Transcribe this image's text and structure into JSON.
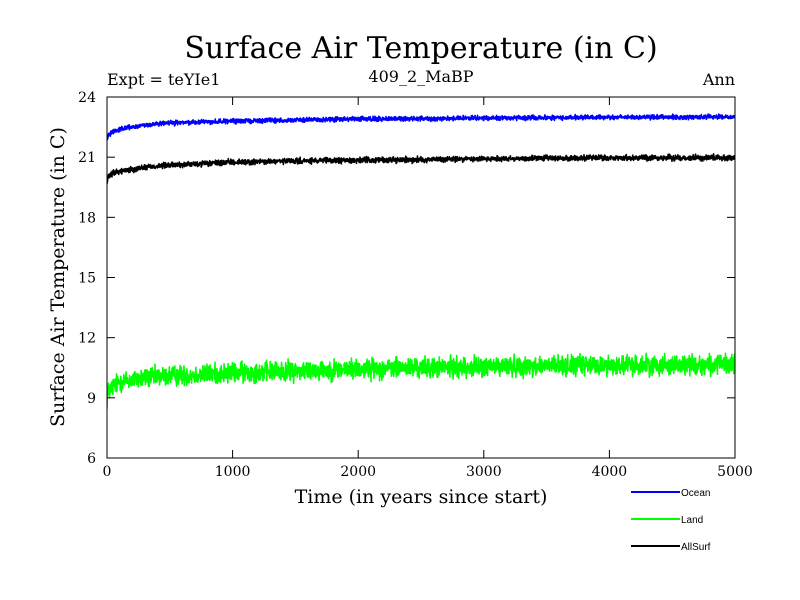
{
  "chart_data": {
    "type": "line",
    "title": "Surface Air Temperature (in C)",
    "subtitle_left": "Expt = teYIe1",
    "subtitle_center": "409_2_MaBP",
    "subtitle_right": "Ann",
    "xlabel": "Time (in years since start)",
    "ylabel": "Surface Air Temperature (in C)",
    "xlim": [
      0,
      5000
    ],
    "ylim": [
      6,
      24
    ],
    "xticks": [
      0,
      1000,
      2000,
      3000,
      4000,
      5000
    ],
    "xtick_labels": [
      "0",
      "1000",
      "2000",
      "3000",
      "4000",
      "5000"
    ],
    "yticks": [
      6,
      9,
      12,
      15,
      18,
      21,
      24
    ],
    "ytick_labels": [
      "6",
      "9",
      "12",
      "15",
      "18",
      "21",
      "24"
    ],
    "legend_position": "bottom-right, outside plot",
    "series": [
      {
        "name": "Ocean",
        "color": "#0000ff",
        "noise_amplitude": 0.08,
        "x": [
          0,
          10,
          50,
          100,
          200,
          300,
          500,
          700,
          1000,
          1500,
          2000,
          2500,
          3000,
          3500,
          4000,
          4500,
          5000
        ],
        "values": [
          21.9,
          22.1,
          22.3,
          22.4,
          22.5,
          22.6,
          22.7,
          22.75,
          22.8,
          22.85,
          22.9,
          22.92,
          22.95,
          22.97,
          22.98,
          23.0,
          23.0
        ]
      },
      {
        "name": "Land",
        "color": "#00ff00",
        "noise_amplitude": 0.35,
        "x": [
          0,
          10,
          50,
          100,
          200,
          300,
          500,
          700,
          1000,
          1500,
          2000,
          2500,
          3000,
          3500,
          4000,
          4500,
          5000
        ],
        "values": [
          8.9,
          9.3,
          9.6,
          9.8,
          9.9,
          10.0,
          10.1,
          10.15,
          10.25,
          10.35,
          10.45,
          10.5,
          10.55,
          10.6,
          10.62,
          10.65,
          10.65
        ]
      },
      {
        "name": "AllSurf",
        "color": "#000000",
        "noise_amplitude": 0.1,
        "x": [
          0,
          10,
          50,
          100,
          200,
          300,
          500,
          700,
          1000,
          1500,
          2000,
          2500,
          3000,
          3500,
          4000,
          4500,
          5000
        ],
        "values": [
          19.7,
          20.0,
          20.2,
          20.3,
          20.4,
          20.5,
          20.6,
          20.65,
          20.75,
          20.8,
          20.85,
          20.88,
          20.92,
          20.95,
          20.96,
          20.97,
          20.98
        ]
      }
    ]
  }
}
